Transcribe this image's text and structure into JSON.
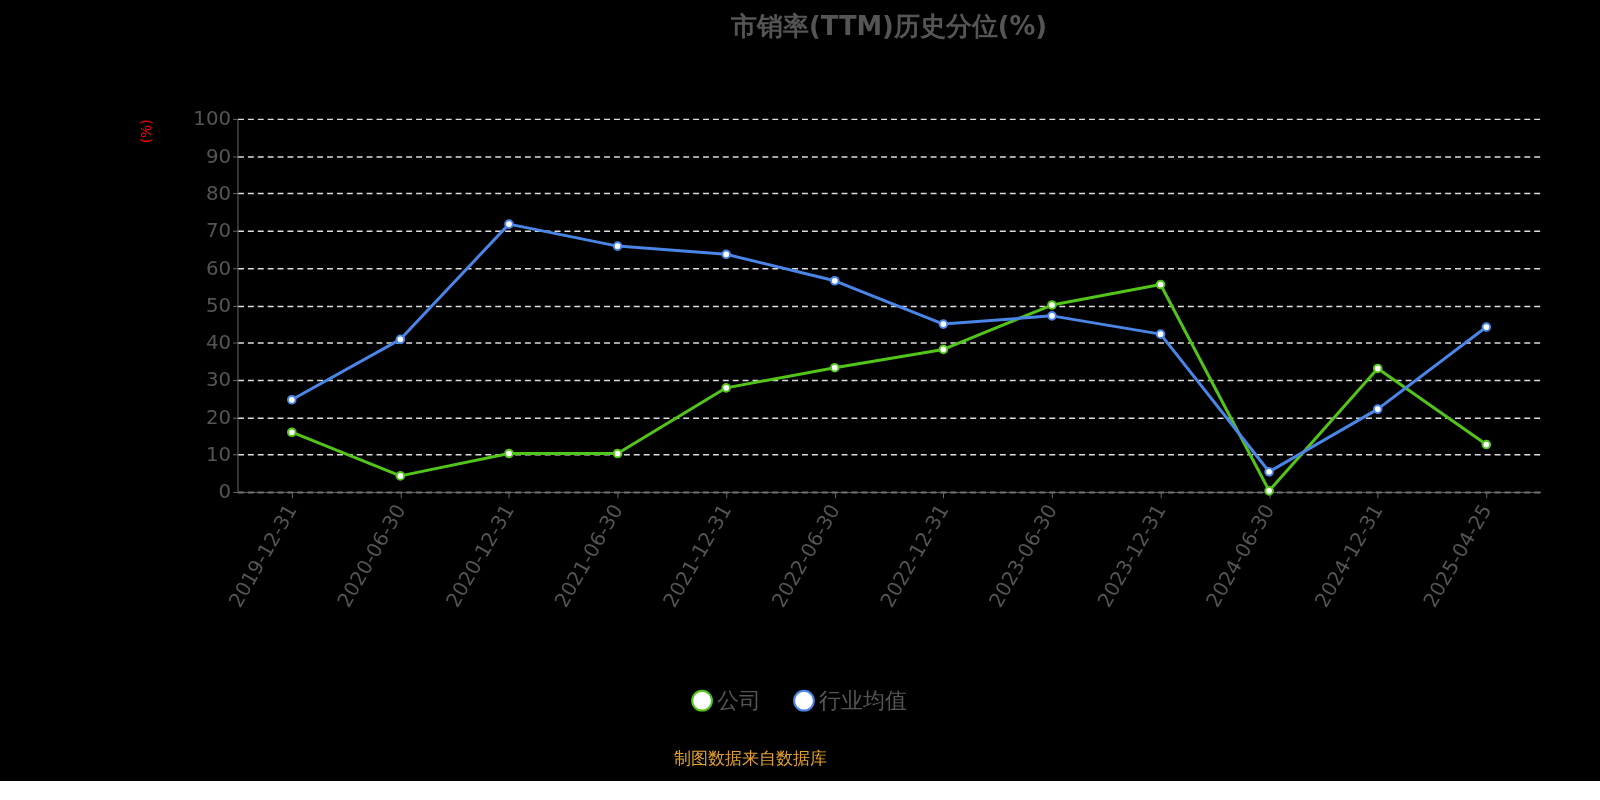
{
  "chart_data": {
    "type": "line",
    "title": "市销率(TTM)历史分位(%)",
    "ylabel": "(%)",
    "categories": [
      "2019-12-31",
      "2020-06-30",
      "2020-12-31",
      "2021-06-30",
      "2021-12-31",
      "2022-06-30",
      "2022-12-31",
      "2023-06-30",
      "2023-12-31",
      "2024-06-30",
      "2024-12-31",
      "2025-04-25"
    ],
    "series": [
      {
        "name": "公司",
        "color": "#52c41a",
        "values": [
          16.0,
          4.3,
          10.3,
          10.3,
          27.9,
          33.3,
          38.2,
          50.1,
          55.6,
          0.3,
          33.1,
          12.7
        ]
      },
      {
        "name": "行业均值",
        "color": "#4a86e8",
        "values": [
          24.7,
          40.9,
          71.8,
          65.9,
          63.7,
          56.6,
          45.0,
          47.2,
          42.3,
          5.4,
          22.2,
          44.2
        ]
      }
    ],
    "ylim": [
      0,
      100
    ],
    "yticks": [
      0,
      10,
      20,
      30,
      40,
      50,
      60,
      70,
      80,
      90,
      100
    ],
    "grid": "y",
    "legend": "bottom",
    "marker": "circle",
    "line_style": "solid",
    "annotations": [
      "制图数据来自数据库"
    ]
  }
}
